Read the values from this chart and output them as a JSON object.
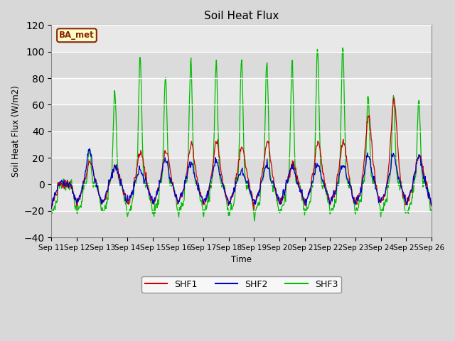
{
  "title": "Soil Heat Flux",
  "ylabel": "Soil Heat Flux (W/m2)",
  "xlabel": "Time",
  "ylim": [
    -40,
    120
  ],
  "bg_color": "#d8d8d8",
  "plot_bg": "#e8e8e8",
  "legend_label": "BA_met",
  "legend_bg": "#ffffcc",
  "legend_border": "#8b2500",
  "series_colors": [
    "#cc0000",
    "#0000cc",
    "#00bb00"
  ],
  "series_names": [
    "SHF1",
    "SHF2",
    "SHF3"
  ],
  "xtick_labels": [
    "Sep 11",
    "Sep 12",
    "Sep 13",
    "Sep 14",
    "Sep 15",
    "Sep 16",
    "Sep 17",
    "Sep 18",
    "Sep 19",
    "Sep 20",
    "Sep 21",
    "Sep 22",
    "Sep 23",
    "Sep 24",
    "Sep 25",
    "Sep 26"
  ],
  "shf3_day_peaks": [
    0,
    25,
    70,
    98,
    82,
    93,
    92,
    94,
    92,
    92,
    103,
    105,
    67,
    67,
    65,
    73
  ],
  "shf1_day_peaks": [
    0,
    17,
    13,
    25,
    25,
    29,
    31,
    30,
    32,
    15,
    32,
    33,
    52,
    64,
    22,
    22
  ],
  "shf2_day_peaks": [
    0,
    27,
    14,
    10,
    20,
    17,
    19,
    10,
    14,
    14,
    15,
    15,
    23,
    23,
    22,
    22
  ],
  "shf_night_val": -15,
  "n_per_day": 48
}
